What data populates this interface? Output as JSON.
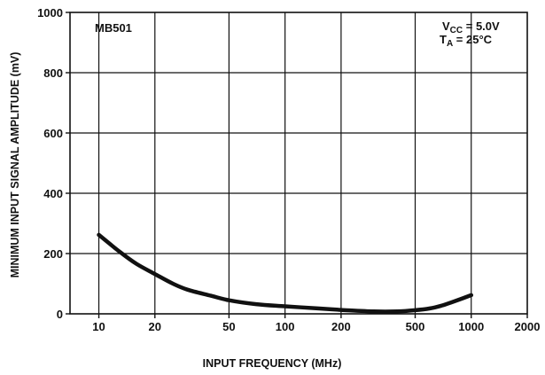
{
  "chart_data": {
    "type": "line",
    "title": "",
    "xlabel": "INPUT FREQUENCY (MHz)",
    "ylabel": "MINIMUM INPUT SIGNAL AMPLITUDE (mV)",
    "x_scale": "log",
    "xlim": [
      7,
      2000
    ],
    "ylim": [
      0,
      1000
    ],
    "grid": true,
    "x_ticks": [
      10,
      20,
      50,
      100,
      200,
      500,
      1000,
      2000
    ],
    "x_tick_labels": [
      "10",
      "20",
      "50",
      "100",
      "200",
      "500",
      "1000",
      "2000"
    ],
    "y_ticks": [
      0,
      200,
      400,
      600,
      800,
      1000
    ],
    "y_tick_labels": [
      "0",
      "200",
      "400",
      "600",
      "800",
      "1000"
    ],
    "series": [
      {
        "x": [
          10,
          13,
          16,
          20,
          25,
          30,
          40,
          50,
          70,
          100,
          150,
          200,
          300,
          400,
          500,
          600,
          700,
          800,
          1000
        ],
        "y": [
          262,
          205,
          165,
          132,
          100,
          80,
          60,
          45,
          32,
          25,
          18,
          13,
          8,
          8,
          12,
          18,
          28,
          40,
          62
        ]
      }
    ],
    "annotations": {
      "device": "MB501",
      "vcc_main": "V",
      "vcc_sub": "CC",
      "vcc_value": " = 5.0V",
      "ta_main": "T",
      "ta_sub": "A",
      "ta_value": " = 25°C"
    }
  }
}
